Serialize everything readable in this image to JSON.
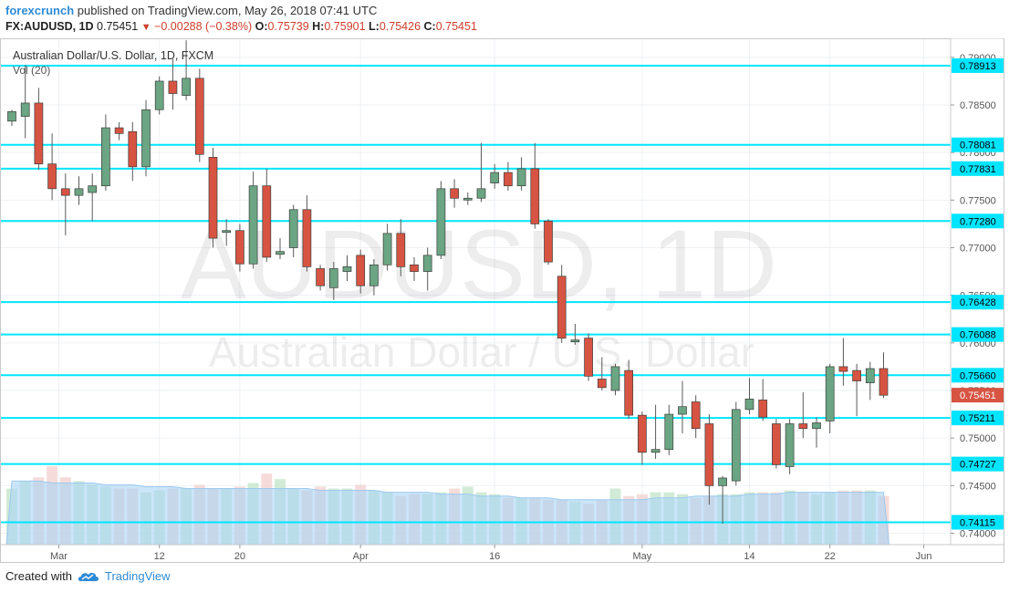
{
  "header": {
    "brand": "forexcrunch",
    "published": "published on TradingView.com, May 26, 2018 07:41 UTC",
    "symbol": "FX:AUDUSD, 1D",
    "last": "0.75451",
    "arrow": "▼",
    "change": "−0.00288 (−0.38%)",
    "o_label": "O:",
    "o_value": "0.75739",
    "h_label": "H:",
    "h_value": "0.75901",
    "l_label": "L:",
    "l_value": "0.75426",
    "c_label": "C:",
    "c_value": "0.75451"
  },
  "chart_title": "Australian Dollar/U.S. Dollar, 1D, FXCM",
  "volume_label": "Vol (20)",
  "watermark": {
    "big": "AUDUSD, 1D",
    "small": "Australian Dollar / U.S. Dollar"
  },
  "footer": {
    "created_with": "Created with",
    "brand": "TradingView"
  },
  "colors": {
    "up": "#6ba583",
    "down": "#d75442",
    "level": "#00e5ff",
    "last_price": "#d75442",
    "volume_ma": "#a9d3f5",
    "vol_up": "#c9e8cf",
    "vol_down": "#f3d6d3"
  },
  "chart_data": {
    "type": "candlestick",
    "y_range": [
      0.7388,
      0.792
    ],
    "y_ticks": [
      "0.74000",
      "0.74500",
      "0.75000",
      "0.75500",
      "0.76000",
      "0.76500",
      "0.77000",
      "0.77500",
      "0.78000",
      "0.78500",
      "0.79000"
    ],
    "x_ticks": [
      {
        "label": "Mar",
        "index": 3.5
      },
      {
        "label": "12",
        "index": 11
      },
      {
        "label": "20",
        "index": 17
      },
      {
        "label": "Apr",
        "index": 26
      },
      {
        "label": "16",
        "index": 36
      },
      {
        "label": "May",
        "index": 47
      },
      {
        "label": "14",
        "index": 55
      },
      {
        "label": "22",
        "index": 61
      },
      {
        "label": "Jun",
        "index": 68
      }
    ],
    "levels": [
      0.78913,
      0.78081,
      0.77831,
      0.7728,
      0.76428,
      0.76088,
      0.7566,
      0.75211,
      0.74727,
      0.74115
    ],
    "level_labels": [
      "0.78913",
      "0.78081",
      "0.77831",
      "0.77280",
      "0.76428",
      "0.76088",
      "0.75660",
      "0.75211",
      "0.74727",
      "0.74115"
    ],
    "last_price": 0.75451,
    "last_price_label": "0.75451",
    "candles": [
      [
        0.7833,
        0.7843,
        0.7828,
        0.7845
      ],
      [
        0.7838,
        0.7852,
        0.7815,
        0.7892
      ],
      [
        0.7852,
        0.7788,
        0.7782,
        0.7868
      ],
      [
        0.7788,
        0.7762,
        0.775,
        0.782
      ],
      [
        0.7762,
        0.7755,
        0.7713,
        0.7778
      ],
      [
        0.7755,
        0.7762,
        0.7745,
        0.7775
      ],
      [
        0.7758,
        0.7765,
        0.7728,
        0.7778
      ],
      [
        0.7765,
        0.7826,
        0.776,
        0.784
      ],
      [
        0.7826,
        0.782,
        0.7813,
        0.7832
      ],
      [
        0.7822,
        0.7785,
        0.777,
        0.7832
      ],
      [
        0.7785,
        0.7845,
        0.7775,
        0.7855
      ],
      [
        0.7845,
        0.7875,
        0.784,
        0.788
      ],
      [
        0.7875,
        0.7862,
        0.7845,
        0.7898
      ],
      [
        0.786,
        0.7878,
        0.7855,
        0.7918
      ],
      [
        0.7878,
        0.7798,
        0.779,
        0.7888
      ],
      [
        0.7795,
        0.771,
        0.77,
        0.7805
      ],
      [
        0.7718,
        0.7718,
        0.7702,
        0.773
      ],
      [
        0.7718,
        0.7683,
        0.7675,
        0.7725
      ],
      [
        0.7683,
        0.7765,
        0.7678,
        0.778
      ],
      [
        0.7765,
        0.769,
        0.7685,
        0.7783
      ],
      [
        0.7693,
        0.7696,
        0.7688,
        0.771
      ],
      [
        0.77,
        0.774,
        0.769,
        0.7745
      ],
      [
        0.774,
        0.768,
        0.7675,
        0.7755
      ],
      [
        0.7678,
        0.766,
        0.7655,
        0.7682
      ],
      [
        0.7658,
        0.7678,
        0.7645,
        0.7685
      ],
      [
        0.7675,
        0.768,
        0.7665,
        0.7692
      ],
      [
        0.7692,
        0.766,
        0.7652,
        0.7698
      ],
      [
        0.766,
        0.7682,
        0.765,
        0.7688
      ],
      [
        0.7682,
        0.7715,
        0.7676,
        0.7725
      ],
      [
        0.7715,
        0.768,
        0.767,
        0.773
      ],
      [
        0.7682,
        0.7675,
        0.7665,
        0.769
      ],
      [
        0.7675,
        0.7692,
        0.7655,
        0.77
      ],
      [
        0.7692,
        0.7762,
        0.7688,
        0.777
      ],
      [
        0.7762,
        0.7752,
        0.7742,
        0.7772
      ],
      [
        0.7752,
        0.7752,
        0.7745,
        0.7758
      ],
      [
        0.7752,
        0.7762,
        0.7748,
        0.781
      ],
      [
        0.7768,
        0.7779,
        0.7762,
        0.7788
      ],
      [
        0.7779,
        0.7765,
        0.776,
        0.779
      ],
      [
        0.7765,
        0.7783,
        0.776,
        0.7795
      ],
      [
        0.7783,
        0.7725,
        0.772,
        0.781
      ],
      [
        0.7728,
        0.7685,
        0.7682,
        0.773
      ],
      [
        0.767,
        0.7605,
        0.76,
        0.7682
      ],
      [
        0.7603,
        0.7603,
        0.7598,
        0.762
      ],
      [
        0.7605,
        0.7565,
        0.756,
        0.761
      ],
      [
        0.7562,
        0.7553,
        0.755,
        0.7585
      ],
      [
        0.755,
        0.7575,
        0.7545,
        0.7578
      ],
      [
        0.7571,
        0.7524,
        0.752,
        0.7582
      ],
      [
        0.7524,
        0.7485,
        0.7472,
        0.7528
      ],
      [
        0.7485,
        0.7488,
        0.7478,
        0.7535
      ],
      [
        0.7488,
        0.7525,
        0.7482,
        0.7535
      ],
      [
        0.7525,
        0.7533,
        0.7505,
        0.756
      ],
      [
        0.7538,
        0.751,
        0.75,
        0.7545
      ],
      [
        0.7515,
        0.745,
        0.743,
        0.7525
      ],
      [
        0.745,
        0.7458,
        0.741,
        0.746
      ],
      [
        0.7455,
        0.753,
        0.745,
        0.7538
      ],
      [
        0.753,
        0.7541,
        0.7525,
        0.7563
      ],
      [
        0.754,
        0.7522,
        0.7518,
        0.7562
      ],
      [
        0.7515,
        0.7472,
        0.7468,
        0.752
      ],
      [
        0.747,
        0.7515,
        0.7462,
        0.752
      ],
      [
        0.7515,
        0.751,
        0.75,
        0.7548
      ],
      [
        0.751,
        0.7516,
        0.749,
        0.7522
      ],
      [
        0.7518,
        0.7575,
        0.7505,
        0.7578
      ],
      [
        0.7575,
        0.757,
        0.7555,
        0.7605
      ],
      [
        0.7571,
        0.756,
        0.7523,
        0.7578
      ],
      [
        0.7558,
        0.7573,
        0.754,
        0.758
      ],
      [
        0.7573,
        0.7545,
        0.7542,
        0.759
      ]
    ],
    "volume": [
      30,
      34,
      36,
      42,
      36,
      34,
      32,
      31,
      30,
      30,
      28,
      29,
      30,
      30,
      32,
      30,
      30,
      31,
      33,
      38,
      35,
      30,
      29,
      31,
      30,
      30,
      32,
      29,
      28,
      26,
      27,
      27,
      28,
      30,
      31,
      28,
      27,
      25,
      25,
      25,
      24,
      24,
      23,
      22,
      24,
      30,
      26,
      27,
      28,
      28,
      27,
      25,
      26,
      27,
      27,
      28,
      28,
      28,
      29,
      28,
      27,
      28,
      29,
      29,
      29,
      26
    ],
    "volume_ma": [
      34,
      34,
      34,
      33,
      33,
      33,
      33,
      32,
      32,
      32,
      31,
      31,
      31,
      30,
      30,
      30,
      30,
      30,
      30,
      30,
      30,
      30,
      30,
      29,
      29,
      29,
      29,
      29,
      28,
      28,
      28,
      28,
      27,
      27,
      27,
      26,
      26,
      26,
      25,
      25,
      25,
      24,
      24,
      24,
      24,
      24,
      24,
      24,
      25,
      25,
      25,
      26,
      26,
      26,
      26,
      27,
      27,
      27,
      28,
      28,
      28,
      28,
      28,
      28,
      28,
      28
    ]
  }
}
